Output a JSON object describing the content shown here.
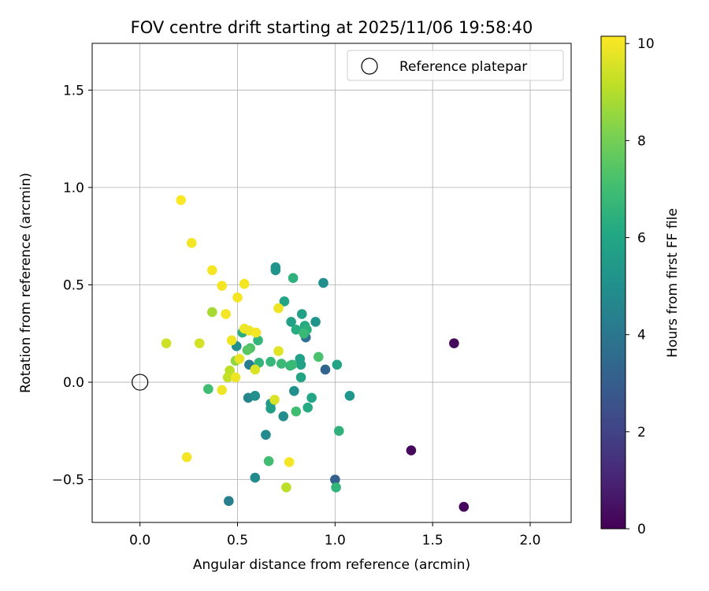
{
  "chart_data": {
    "type": "scatter",
    "title": "FOV centre drift starting at 2025/11/06 19:58:40",
    "xlabel": "Angular distance from reference (arcmin)",
    "ylabel": "Rotation from reference (arcmin)",
    "xlim": [
      -0.245,
      2.21
    ],
    "ylim": [
      -0.72,
      1.74
    ],
    "xticks": [
      0.0,
      0.5,
      1.0,
      1.5,
      2.0
    ],
    "xtick_labels": [
      "0.0",
      "0.5",
      "1.0",
      "1.5",
      "2.0"
    ],
    "yticks": [
      -0.5,
      0.0,
      0.5,
      1.0,
      1.5
    ],
    "ytick_labels": [
      "−0.5",
      "0.0",
      "0.5",
      "1.0",
      "1.5"
    ],
    "grid": true,
    "legend": {
      "location": "upper right",
      "entries": [
        {
          "label": "Reference platepar",
          "marker": "open-circle"
        }
      ]
    },
    "reference_point": {
      "x": 0.0,
      "y": 0.0
    },
    "colorbar": {
      "label": "Hours from first FF file",
      "colormap": "viridis",
      "range": [
        0,
        10.15
      ],
      "ticks": [
        0,
        2,
        4,
        6,
        8,
        10
      ],
      "tick_labels": [
        "0",
        "2",
        "4",
        "6",
        "8",
        "10"
      ]
    },
    "points": [
      {
        "x": 1.61,
        "y": 0.2,
        "c": 0.2
      },
      {
        "x": 1.39,
        "y": -0.35,
        "c": 0.2
      },
      {
        "x": 1.66,
        "y": -0.64,
        "c": 0.2
      },
      {
        "x": 1.0,
        "y": -0.5,
        "c": 3.1
      },
      {
        "x": 0.95,
        "y": 0.065,
        "c": 3.3
      },
      {
        "x": 0.85,
        "y": 0.23,
        "c": 3.8
      },
      {
        "x": 0.56,
        "y": 0.09,
        "c": 4.2
      },
      {
        "x": 0.455,
        "y": -0.61,
        "c": 4.4
      },
      {
        "x": 0.59,
        "y": -0.49,
        "c": 4.8
      },
      {
        "x": 0.645,
        "y": -0.27,
        "c": 4.8
      },
      {
        "x": 0.735,
        "y": -0.175,
        "c": 4.9
      },
      {
        "x": 0.555,
        "y": -0.08,
        "c": 4.6
      },
      {
        "x": 0.59,
        "y": -0.07,
        "c": 5.0
      },
      {
        "x": 0.79,
        "y": -0.045,
        "c": 5.0
      },
      {
        "x": 0.495,
        "y": 0.185,
        "c": 5.0
      },
      {
        "x": 0.695,
        "y": 0.59,
        "c": 5.2
      },
      {
        "x": 0.695,
        "y": 0.575,
        "c": 5.2
      },
      {
        "x": 0.94,
        "y": 0.51,
        "c": 5.0
      },
      {
        "x": 0.9,
        "y": 0.31,
        "c": 5.2
      },
      {
        "x": 1.075,
        "y": -0.07,
        "c": 5.3
      },
      {
        "x": 0.67,
        "y": -0.11,
        "c": 5.4
      },
      {
        "x": 0.67,
        "y": -0.135,
        "c": 5.6
      },
      {
        "x": 0.83,
        "y": 0.35,
        "c": 5.8
      },
      {
        "x": 0.74,
        "y": 0.415,
        "c": 5.9
      },
      {
        "x": 0.775,
        "y": 0.31,
        "c": 5.8
      },
      {
        "x": 0.825,
        "y": 0.09,
        "c": 5.8
      },
      {
        "x": 0.82,
        "y": 0.12,
        "c": 5.8
      },
      {
        "x": 0.825,
        "y": 0.025,
        "c": 5.9
      },
      {
        "x": 1.01,
        "y": 0.09,
        "c": 5.9
      },
      {
        "x": 0.88,
        "y": -0.08,
        "c": 6.0
      },
      {
        "x": 0.86,
        "y": -0.13,
        "c": 6.2
      },
      {
        "x": 0.8,
        "y": 0.27,
        "c": 6.3
      },
      {
        "x": 0.845,
        "y": 0.29,
        "c": 6.2
      },
      {
        "x": 0.855,
        "y": 0.27,
        "c": 6.4
      },
      {
        "x": 0.785,
        "y": 0.535,
        "c": 6.5
      },
      {
        "x": 1.02,
        "y": -0.25,
        "c": 6.5
      },
      {
        "x": 1.005,
        "y": -0.54,
        "c": 6.6
      },
      {
        "x": 0.525,
        "y": 0.255,
        "c": 6.3
      },
      {
        "x": 0.605,
        "y": 0.215,
        "c": 6.6
      },
      {
        "x": 0.61,
        "y": 0.1,
        "c": 6.6
      },
      {
        "x": 0.67,
        "y": 0.105,
        "c": 6.7
      },
      {
        "x": 0.725,
        "y": 0.095,
        "c": 6.8
      },
      {
        "x": 0.77,
        "y": 0.085,
        "c": 6.7
      },
      {
        "x": 0.78,
        "y": 0.09,
        "c": 6.8
      },
      {
        "x": 0.84,
        "y": 0.25,
        "c": 6.8
      },
      {
        "x": 0.8,
        "y": -0.15,
        "c": 7.0
      },
      {
        "x": 0.915,
        "y": 0.13,
        "c": 7.2
      },
      {
        "x": 0.35,
        "y": -0.035,
        "c": 7.0
      },
      {
        "x": 0.66,
        "y": -0.405,
        "c": 7.0
      },
      {
        "x": 0.565,
        "y": 0.175,
        "c": 7.3
      },
      {
        "x": 0.55,
        "y": 0.165,
        "c": 7.5
      },
      {
        "x": 0.37,
        "y": 0.36,
        "c": 8.8
      },
      {
        "x": 0.49,
        "y": 0.11,
        "c": 8.5
      },
      {
        "x": 0.46,
        "y": 0.06,
        "c": 9.1
      },
      {
        "x": 0.45,
        "y": 0.025,
        "c": 9.2
      },
      {
        "x": 0.135,
        "y": 0.2,
        "c": 9.4
      },
      {
        "x": 0.305,
        "y": 0.2,
        "c": 9.5
      },
      {
        "x": 0.75,
        "y": -0.54,
        "c": 9.1
      },
      {
        "x": 0.69,
        "y": -0.09,
        "c": 9.6
      },
      {
        "x": 0.42,
        "y": -0.04,
        "c": 9.9
      },
      {
        "x": 0.49,
        "y": 0.025,
        "c": 9.9
      },
      {
        "x": 0.51,
        "y": 0.12,
        "c": 9.8
      },
      {
        "x": 0.47,
        "y": 0.215,
        "c": 9.9
      },
      {
        "x": 0.59,
        "y": 0.065,
        "c": 9.6
      },
      {
        "x": 0.71,
        "y": 0.16,
        "c": 9.7
      },
      {
        "x": 0.71,
        "y": 0.38,
        "c": 9.9
      },
      {
        "x": 0.535,
        "y": 0.275,
        "c": 9.9
      },
      {
        "x": 0.56,
        "y": 0.265,
        "c": 9.9
      },
      {
        "x": 0.595,
        "y": 0.255,
        "c": 10.0
      },
      {
        "x": 0.44,
        "y": 0.35,
        "c": 10.0
      },
      {
        "x": 0.5,
        "y": 0.435,
        "c": 10.0
      },
      {
        "x": 0.42,
        "y": 0.495,
        "c": 10.0
      },
      {
        "x": 0.535,
        "y": 0.505,
        "c": 10.0
      },
      {
        "x": 0.37,
        "y": 0.575,
        "c": 10.0
      },
      {
        "x": 0.265,
        "y": 0.715,
        "c": 10.0
      },
      {
        "x": 0.21,
        "y": 0.935,
        "c": 10.1
      },
      {
        "x": 0.24,
        "y": -0.385,
        "c": 10.0
      },
      {
        "x": 0.765,
        "y": -0.41,
        "c": 10.0
      }
    ]
  }
}
